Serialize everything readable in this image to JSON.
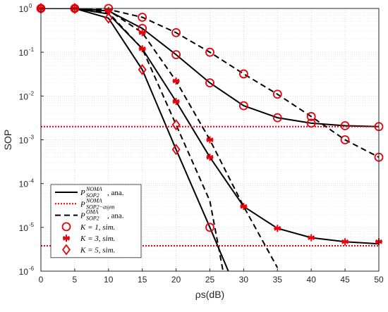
{
  "chart_data": {
    "type": "line",
    "xlabel": "ρs(dB)",
    "ylabel": "SOP",
    "xlim": [
      0,
      50
    ],
    "ylim": [
      1e-06,
      1
    ],
    "yscale": "log",
    "grid": true,
    "legend_position": "bottom-left",
    "x_ticks": [
      0,
      5,
      10,
      15,
      20,
      25,
      30,
      35,
      40,
      45,
      50
    ],
    "y_ticks": [
      {
        "value": 1,
        "label": "10",
        "exp": "0"
      },
      {
        "value": 0.1,
        "label": "10",
        "exp": "-1"
      },
      {
        "value": 0.01,
        "label": "10",
        "exp": "-2"
      },
      {
        "value": 0.001,
        "label": "10",
        "exp": "-3"
      },
      {
        "value": 0.0001,
        "label": "10",
        "exp": "-4"
      },
      {
        "value": 1e-05,
        "label": "10",
        "exp": "-5"
      },
      {
        "value": 1e-06,
        "label": "10",
        "exp": "-6"
      }
    ],
    "lines": [
      {
        "name": "noma_k1",
        "style": "solid",
        "color": "#000000",
        "x": [
          0,
          5,
          10,
          15,
          20,
          25,
          30,
          35,
          40,
          45,
          50
        ],
        "y": [
          1,
          1,
          0.88,
          0.35,
          0.088,
          0.02,
          0.006,
          0.0032,
          0.0024,
          0.0021,
          0.002
        ]
      },
      {
        "name": "noma_k3",
        "style": "solid",
        "color": "#000000",
        "x": [
          0,
          5,
          10,
          15,
          20,
          25,
          30,
          35,
          40,
          45,
          50
        ],
        "y": [
          1,
          1,
          0.75,
          0.12,
          0.0075,
          0.0004,
          3e-05,
          9.5e-06,
          5.8e-06,
          4.7e-06,
          4.2e-06
        ]
      },
      {
        "name": "noma_k5",
        "style": "solid",
        "color": "#000000",
        "x": [
          0,
          5,
          10,
          15,
          20,
          25,
          28
        ],
        "y": [
          1,
          1,
          0.6,
          0.04,
          0.0006,
          1e-05,
          8e-07
        ]
      },
      {
        "name": "asym",
        "style": "dotted",
        "color": "#e8000b",
        "x": [
          0,
          50
        ],
        "y": [
          0.002,
          0.002
        ]
      },
      {
        "name": "asym_k3",
        "style": "dotted",
        "color": "#e8000b",
        "x": [
          0,
          50
        ],
        "y": [
          3.8e-06,
          3.8e-06
        ]
      },
      {
        "name": "oma_k1",
        "style": "dashed",
        "color": "#000000",
        "x": [
          0,
          5,
          10,
          15,
          20,
          25,
          30,
          35,
          40,
          45,
          50
        ],
        "y": [
          1,
          1,
          0.95,
          0.63,
          0.28,
          0.1,
          0.032,
          0.011,
          0.0034,
          0.001,
          0.0004
        ]
      },
      {
        "name": "oma_k3",
        "style": "dashed",
        "color": "#000000",
        "x": [
          0,
          5,
          10,
          15,
          20,
          25,
          30,
          35
        ],
        "y": [
          1,
          1,
          0.9,
          0.28,
          0.022,
          0.001,
          3e-05,
          1.2e-06
        ]
      },
      {
        "name": "oma_k5",
        "style": "dashed",
        "color": "#000000",
        "x": [
          0,
          5,
          10,
          15,
          20,
          25,
          27
        ],
        "y": [
          1,
          1,
          0.8,
          0.12,
          0.0022,
          4e-05,
          9e-07
        ]
      }
    ],
    "markers": [
      {
        "name": "K=1 sim",
        "shape": "circle",
        "color": "#e8000b",
        "points": [
          [
            0,
            1
          ],
          [
            5,
            1
          ],
          [
            10,
            1
          ],
          [
            15,
            0.63
          ],
          [
            20,
            0.28
          ],
          [
            25,
            0.1
          ],
          [
            30,
            0.032
          ],
          [
            35,
            0.011
          ],
          [
            40,
            0.0034
          ],
          [
            45,
            0.001
          ],
          [
            50,
            0.0004
          ],
          [
            15,
            0.35
          ],
          [
            20,
            0.088
          ],
          [
            25,
            0.02
          ],
          [
            30,
            0.006
          ],
          [
            35,
            0.0032
          ],
          [
            40,
            0.0024
          ],
          [
            45,
            0.0021
          ],
          [
            50,
            0.002
          ],
          [
            25,
            1e-05
          ]
        ]
      },
      {
        "name": "K=3 sim",
        "shape": "asterisk",
        "color": "#e8000b",
        "points": [
          [
            0,
            1
          ],
          [
            5,
            1
          ],
          [
            10,
            0.9
          ],
          [
            15,
            0.28
          ],
          [
            20,
            0.022
          ],
          [
            25,
            0.001
          ],
          [
            30,
            3e-05
          ],
          [
            15,
            0.12
          ],
          [
            20,
            0.0075
          ],
          [
            25,
            0.0004
          ],
          [
            35,
            9.5e-06
          ],
          [
            40,
            5.8e-06
          ],
          [
            45,
            4.7e-06
          ],
          [
            50,
            4.7e-06
          ]
        ]
      },
      {
        "name": "K=5 sim",
        "shape": "diamond",
        "color": "#e8000b",
        "points": [
          [
            0,
            1
          ],
          [
            5,
            1
          ],
          [
            10,
            0.6
          ],
          [
            15,
            0.04
          ],
          [
            20,
            0.0006
          ],
          [
            20,
            0.0022
          ]
        ]
      }
    ],
    "legend": [
      {
        "sym": "solid",
        "text": "P",
        "sup": "NOMA",
        "sub": "SOP2",
        "suffix": ", ana."
      },
      {
        "sym": "dotted",
        "text": "P",
        "sup": "NOMA",
        "sub": "SOP2−asym",
        "suffix": ""
      },
      {
        "sym": "dashed",
        "text": "P",
        "sup": "OMA",
        "sub": "SOP2",
        "suffix": ", ana."
      },
      {
        "sym": "circle",
        "text": "K = 1, sim.",
        "sup": "",
        "sub": "",
        "suffix": ""
      },
      {
        "sym": "asterisk",
        "text": "K = 3, sim.",
        "sup": "",
        "sub": "",
        "suffix": ""
      },
      {
        "sym": "diamond",
        "text": "K = 5, sim.",
        "sup": "",
        "sub": "",
        "suffix": ""
      }
    ]
  }
}
